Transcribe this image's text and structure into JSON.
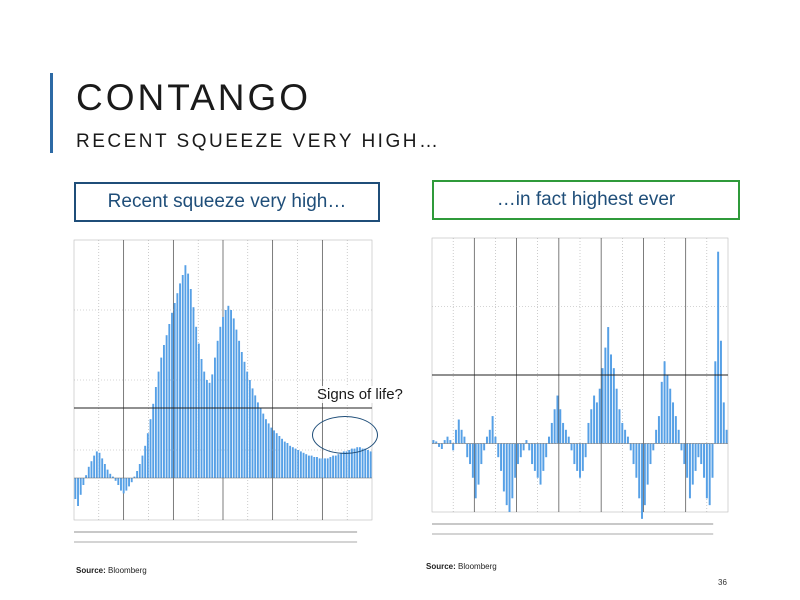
{
  "slide": {
    "title": "CONTANGO",
    "subtitle": "RECENT SQUEEZE VERY HIGH…",
    "page_number": "36"
  },
  "boxes": {
    "left_label": "Recent squeeze very high…",
    "right_label": "…in fact highest ever"
  },
  "annotation": {
    "text": "Signs of life?"
  },
  "sources": {
    "prefix": "Source:",
    "left": "Bloomberg",
    "right": "Bloomberg"
  },
  "colors": {
    "bar": "#56a0e6",
    "accent": "#2d6aa5",
    "left_box": "#1f4e79",
    "right_box": "#2f9a3a",
    "ref_line": "#222222"
  },
  "chart_data": [
    {
      "type": "bar",
      "title": "",
      "ylim": [
        -3,
        17
      ],
      "reference_line": 5,
      "series": [
        {
          "values": [
            -1.5,
            -2.0,
            -1.2,
            -0.5,
            0.2,
            0.8,
            1.2,
            1.6,
            1.9,
            1.8,
            1.4,
            1.0,
            0.6,
            0.3,
            0.1,
            -0.2,
            -0.5,
            -0.9,
            -1.1,
            -0.9,
            -0.6,
            -0.3,
            0.1,
            0.5,
            1.0,
            1.6,
            2.3,
            3.2,
            4.2,
            5.3,
            6.5,
            7.6,
            8.6,
            9.5,
            10.2,
            11.0,
            11.8,
            12.5,
            13.2,
            13.9,
            14.5,
            15.2,
            14.6,
            13.5,
            12.2,
            10.8,
            9.6,
            8.5,
            7.6,
            7.0,
            6.8,
            7.4,
            8.6,
            9.8,
            10.8,
            11.5,
            12.0,
            12.3,
            12.0,
            11.4,
            10.6,
            9.8,
            9.0,
            8.3,
            7.6,
            7.0,
            6.4,
            5.9,
            5.4,
            5.0,
            4.6,
            4.2,
            3.9,
            3.6,
            3.4,
            3.2,
            3.0,
            2.8,
            2.6,
            2.5,
            2.3,
            2.2,
            2.1,
            2.0,
            1.9,
            1.8,
            1.7,
            1.6,
            1.6,
            1.5,
            1.5,
            1.4,
            1.4,
            1.4,
            1.4,
            1.5,
            1.6,
            1.6,
            1.7,
            1.8,
            1.9,
            1.9,
            2.0,
            2.1,
            2.1,
            2.2,
            2.2,
            2.1,
            2.1,
            2.0,
            1.9
          ]
        }
      ]
    },
    {
      "type": "bar",
      "title": "",
      "ylim": [
        -10,
        30
      ],
      "reference_line": 10,
      "series": [
        {
          "values": [
            0.5,
            0.3,
            -0.5,
            -0.8,
            0.5,
            1.0,
            0.5,
            -1.0,
            2.0,
            3.5,
            2.0,
            1.0,
            -2.0,
            -3.0,
            -5.0,
            -8.0,
            -6.0,
            -3.0,
            -1.0,
            1.0,
            2.0,
            4.0,
            1.0,
            -2.0,
            -4.0,
            -7.0,
            -9.0,
            -10.0,
            -8.0,
            -5.0,
            -3.0,
            -2.0,
            -1.0,
            0.5,
            -1.0,
            -3.0,
            -4.0,
            -5.0,
            -6.0,
            -4.0,
            -2.0,
            1.0,
            3.0,
            5.0,
            7.0,
            5.0,
            3.0,
            2.0,
            1.0,
            -1.0,
            -3.0,
            -4.0,
            -5.0,
            -4.0,
            -2.0,
            3.0,
            5.0,
            7.0,
            6.0,
            8.0,
            11.0,
            14.0,
            17.0,
            13.0,
            11.0,
            8.0,
            5.0,
            3.0,
            2.0,
            1.0,
            -1.0,
            -3.0,
            -5.0,
            -8.0,
            -11.0,
            -9.0,
            -6.0,
            -3.0,
            -1.0,
            2.0,
            4.0,
            9.0,
            12.0,
            10.0,
            8.0,
            6.0,
            4.0,
            2.0,
            -1.0,
            -3.0,
            -5.0,
            -8.0,
            -6.0,
            -4.0,
            -2.0,
            -3.0,
            -5.0,
            -8.0,
            -9.0,
            -5.0,
            12.0,
            28.0,
            15.0,
            6.0,
            2.0
          ]
        }
      ]
    }
  ]
}
